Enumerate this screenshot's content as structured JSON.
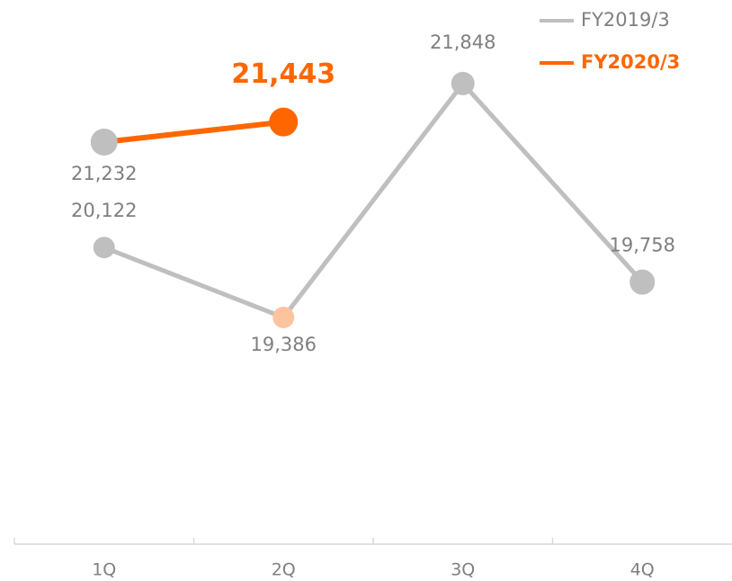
{
  "chart_data": {
    "type": "line",
    "categories": [
      "1Q",
      "2Q",
      "3Q",
      "4Q"
    ],
    "series": [
      {
        "name": "FY2019/3",
        "color": "#bfbfbf",
        "values": [
          20122,
          19386,
          21848,
          19758
        ],
        "value_labels": [
          "20,122",
          "19,386",
          "21,848",
          "19,758"
        ],
        "point_colors": [
          "#bfbfbf",
          "#fbc49f",
          "#bfbfbf",
          "#bfbfbf"
        ]
      },
      {
        "name": "FY2020/3",
        "color": "#ff6600",
        "values": [
          21232,
          21443,
          null,
          null
        ],
        "value_labels": [
          "21,232",
          "21,443",
          null,
          null
        ],
        "point_colors": [
          "#bfbfbf",
          "#ff6600",
          null,
          null
        ]
      }
    ],
    "ylim": [
      17000,
      22500
    ],
    "legend": "top-right"
  }
}
